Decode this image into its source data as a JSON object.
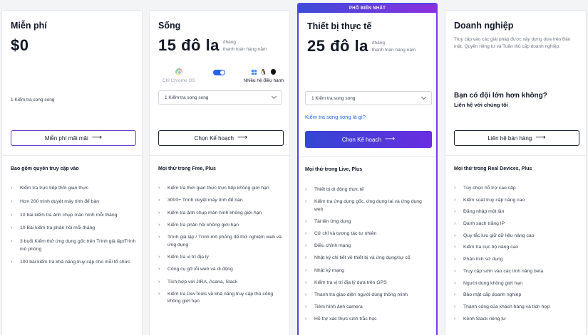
{
  "plans": [
    {
      "name": "Miễn phí",
      "price": "$0",
      "parallel": "1 Kiểm tra song song",
      "button": "Miễn phí mãi mãi",
      "includes": "Bao gồm quyền truy cập vào",
      "features": [
        "Kiểm tra trực tiếp thời gian thực",
        "Hơn 200 trình duyệt máy tính để bàn",
        "10 bài kiểm tra ảnh chụp màn hình mỗi tháng",
        "10 Bài kiểm tra phản hồi mỗi tháng",
        "3 buổi Kiểm thử ứng dụng gốc trên Trình giả lập/Trình mô phỏng",
        "100 bài kiểm tra khả năng truy cập cho mỗi tổ chức"
      ]
    },
    {
      "name": "Sống",
      "price": "15 đô la",
      "per": "/tháng",
      "billing": "thanh toán hàng năm",
      "os_chrome": "Chỉ Chrome OS",
      "os_multi": "Nhiều hệ điều hành",
      "select": "1 Kiểm tra song song",
      "button": "Chọn Kế hoạch",
      "includes": "Mọi thứ trong Free, Plus",
      "features": [
        "Kiểm tra thời gian thực trực tiếp không giới hạn",
        "3000+ Trình duyệt máy tính để bàn",
        "Kiểm tra ảnh chụp màn hình không giới hạn",
        "Kiểm tra phản hồi không giới hạn",
        "Trình giả lập / Trình mô phỏng để thử nghiệm web và ứng dụng",
        "Kiểm tra vị trí địa lý",
        "Công cụ gỡ lỗi web và di động",
        "Tích hợp với JIRA, Asana, Slack",
        "Kiểm tra DevTools về khả năng truy cập thủ công không giới hạn"
      ]
    },
    {
      "badge": "PHỔ BIẾN NHẤT",
      "name": "Thiết bị thực tế",
      "price": "25 đô la",
      "per": "/tháng",
      "billing": "thanh toán hàng năm",
      "select": "1 Kiểm tra song song",
      "link": "Kiểm tra song song là gì?",
      "button": "Chọn Kế hoạch",
      "includes": "Mọi thứ trong Live, Plus",
      "features": [
        "Thiết bị di động thực tế",
        "Kiểm tra ứng dụng gốc, ứng dụng lai và ứng dụng web",
        "Tải lên ứng dụng",
        "Cử chỉ và tương tác tự nhiên",
        "Điều chỉnh mạng",
        "Nhật ký chi tiết về thiết bị và ứng dụng/sự cố",
        "Nhật ký mạng",
        "Kiểm tra vị trí địa lý dựa trên GPS",
        "Thanh tra giao diện người dùng thông minh",
        "Tiêm hình ảnh camera",
        "Hỗ trợ xác thực sinh trắc học"
      ]
    },
    {
      "name": "Doanh nghiệp",
      "desc": "Truy cập vào các giải pháp được xây dựng dựa trên Bảo mật, Quyền riêng tư và Tuân thủ cấp doanh nghiệp.",
      "contact_title": "Bạn có đội lớn hơn không?",
      "contact_sub": "Liên hệ với chúng tôi",
      "button": "Liên hệ bán hàng",
      "includes": "Mọi thứ trong Real Devices, Plus",
      "features": [
        "Tùy chọn hỗ trợ cao cấp",
        "Kiểm soát truy cập nâng cao",
        "Đăng nhập một lần",
        "Danh sách trắng IP",
        "Quy tắc lưu giữ dữ liệu nâng cao",
        "Kiểm tra cục bộ nâng cao",
        "Phân tích sử dụng",
        "Truy cập sớm vào các tính năng beta",
        "Người dùng không giới hạn",
        "Bảo mật cấp doanh nghiệp",
        "Thành công của khách hàng và tích hợp",
        "Kênh Slack riêng tư"
      ]
    }
  ]
}
